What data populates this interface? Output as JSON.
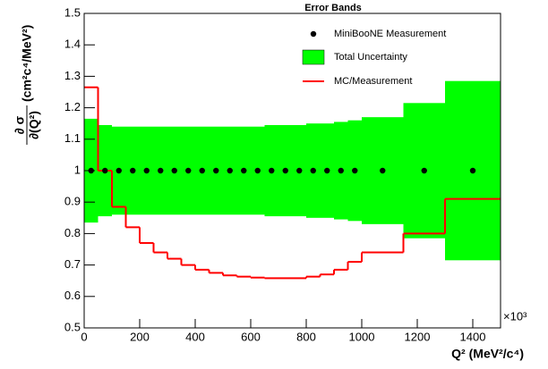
{
  "chart_data": {
    "type": "histogram",
    "title": "Error Bands",
    "xlabel": "Q² (MeV²/c⁴)",
    "x_multiplier": "×10³",
    "ylabel": {
      "numerator": "∂ σ",
      "denominator": "∂(Q²)",
      "units": "(cm²c⁴/MeV²)"
    },
    "bins": [
      0,
      50,
      100,
      150,
      200,
      250,
      300,
      350,
      400,
      450,
      500,
      550,
      600,
      650,
      700,
      750,
      800,
      850,
      900,
      950,
      1000,
      1150,
      1300,
      1500
    ],
    "series": [
      {
        "name": "MiniBooNE Measurement",
        "color": "#000000",
        "values": [
          1,
          1,
          1,
          1,
          1,
          1,
          1,
          1,
          1,
          1,
          1,
          1,
          1,
          1,
          1,
          1,
          1,
          1,
          1,
          1,
          1,
          1,
          1
        ]
      },
      {
        "name": "Total Uncertainty",
        "color": "#00ff00",
        "values": [
          0.165,
          0.145,
          0.14,
          0.14,
          0.14,
          0.14,
          0.14,
          0.14,
          0.14,
          0.14,
          0.14,
          0.14,
          0.14,
          0.145,
          0.145,
          0.145,
          0.15,
          0.15,
          0.155,
          0.16,
          0.17,
          0.215,
          0.285
        ]
      },
      {
        "name": "MC/Measurement",
        "color": "#ff0000",
        "values": [
          1.265,
          1.0,
          0.885,
          0.82,
          0.77,
          0.74,
          0.72,
          0.7,
          0.685,
          0.675,
          0.667,
          0.663,
          0.66,
          0.658,
          0.658,
          0.658,
          0.663,
          0.67,
          0.685,
          0.71,
          0.74,
          0.8,
          0.91
        ]
      }
    ],
    "xlim": [
      0,
      1500
    ],
    "xticks": [
      0,
      200,
      400,
      600,
      800,
      1000,
      1200,
      1400
    ],
    "ylim": [
      0.5,
      1.5
    ],
    "yticks": [
      0.5,
      0.6,
      0.7,
      0.8,
      0.9,
      1,
      1.1,
      1.2,
      1.3,
      1.4,
      1.5
    ]
  }
}
